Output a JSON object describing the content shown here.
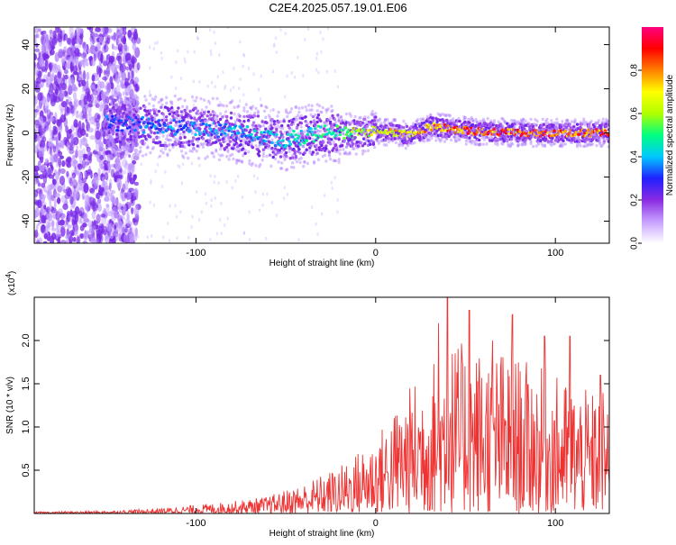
{
  "title": "C2E4.2025.057.19.01.E06",
  "chart_data": [
    {
      "type": "heatmap",
      "subtype": "spectrogram",
      "xlabel": "Height of straight line (km)",
      "ylabel": "Frequency (Hz)",
      "xlim": [
        -190,
        130
      ],
      "ylim": [
        -50,
        48
      ],
      "xticks": [
        -100,
        0,
        100
      ],
      "yticks": [
        -40,
        -20,
        0,
        20,
        40
      ],
      "colorbar": {
        "label": "Normalized spectral amplitude",
        "range": [
          0,
          1
        ],
        "ticks": [
          0.0,
          0.2,
          0.4,
          0.6,
          0.8
        ],
        "colors": [
          "#ffffff",
          "#c8a0ff",
          "#8a2be2",
          "#2020ff",
          "#00c8ff",
          "#00ff80",
          "#b0ff00",
          "#ffff00",
          "#ff8000",
          "#ff0000",
          "#ff0080"
        ]
      },
      "centerline_hz": [
        {
          "x": -150,
          "y": 5
        },
        {
          "x": -120,
          "y": 3
        },
        {
          "x": -90,
          "y": 2
        },
        {
          "x": -60,
          "y": -2
        },
        {
          "x": -50,
          "y": -3
        },
        {
          "x": -30,
          "y": 0
        },
        {
          "x": -10,
          "y": 0
        },
        {
          "x": 0,
          "y": 1
        },
        {
          "x": 20,
          "y": -1
        },
        {
          "x": 30,
          "y": 3
        },
        {
          "x": 50,
          "y": 1
        },
        {
          "x": 80,
          "y": 0
        },
        {
          "x": 100,
          "y": 0
        },
        {
          "x": 130,
          "y": 0
        }
      ],
      "amplitude_profile": [
        {
          "x": -150,
          "a": 0.35
        },
        {
          "x": -100,
          "a": 0.4
        },
        {
          "x": -50,
          "a": 0.45
        },
        {
          "x": -20,
          "a": 0.55
        },
        {
          "x": 0,
          "a": 0.75
        },
        {
          "x": 50,
          "a": 0.9
        },
        {
          "x": 100,
          "a": 0.95
        },
        {
          "x": 130,
          "a": 0.9
        }
      ],
      "noise_region": [
        -190,
        -140
      ]
    },
    {
      "type": "line",
      "xlabel": "Height of straight line (km)",
      "ylabel": "SNR (10 * v/v)",
      "multiplier_label": "(x10",
      "multiplier_exp": "4",
      "xlim": [
        -190,
        130
      ],
      "ylim": [
        0,
        2.5
      ],
      "xticks": [
        -100,
        0,
        100
      ],
      "yticks": [
        0.5,
        1.0,
        1.5,
        2.0
      ],
      "series": [
        {
          "color": "#ee3333",
          "envelope": [
            {
              "x": -190,
              "y": 0.02
            },
            {
              "x": -150,
              "y": 0.03
            },
            {
              "x": -120,
              "y": 0.06
            },
            {
              "x": -100,
              "y": 0.1
            },
            {
              "x": -80,
              "y": 0.14
            },
            {
              "x": -60,
              "y": 0.2
            },
            {
              "x": -40,
              "y": 0.35
            },
            {
              "x": -20,
              "y": 0.55
            },
            {
              "x": 0,
              "y": 0.9
            },
            {
              "x": 20,
              "y": 1.5
            },
            {
              "x": 40,
              "y": 2.0
            },
            {
              "x": 70,
              "y": 1.9
            },
            {
              "x": 100,
              "y": 1.6
            },
            {
              "x": 120,
              "y": 1.4
            },
            {
              "x": 130,
              "y": 1.5
            }
          ],
          "peaks": [
            {
              "x": 35,
              "y": 2.2
            },
            {
              "x": 40,
              "y": 2.5
            },
            {
              "x": 52,
              "y": 2.35
            },
            {
              "x": 65,
              "y": 2.0
            },
            {
              "x": 76,
              "y": 2.3
            },
            {
              "x": 94,
              "y": 2.05
            },
            {
              "x": 108,
              "y": 2.05
            },
            {
              "x": 125,
              "y": 1.6
            }
          ]
        }
      ]
    }
  ]
}
